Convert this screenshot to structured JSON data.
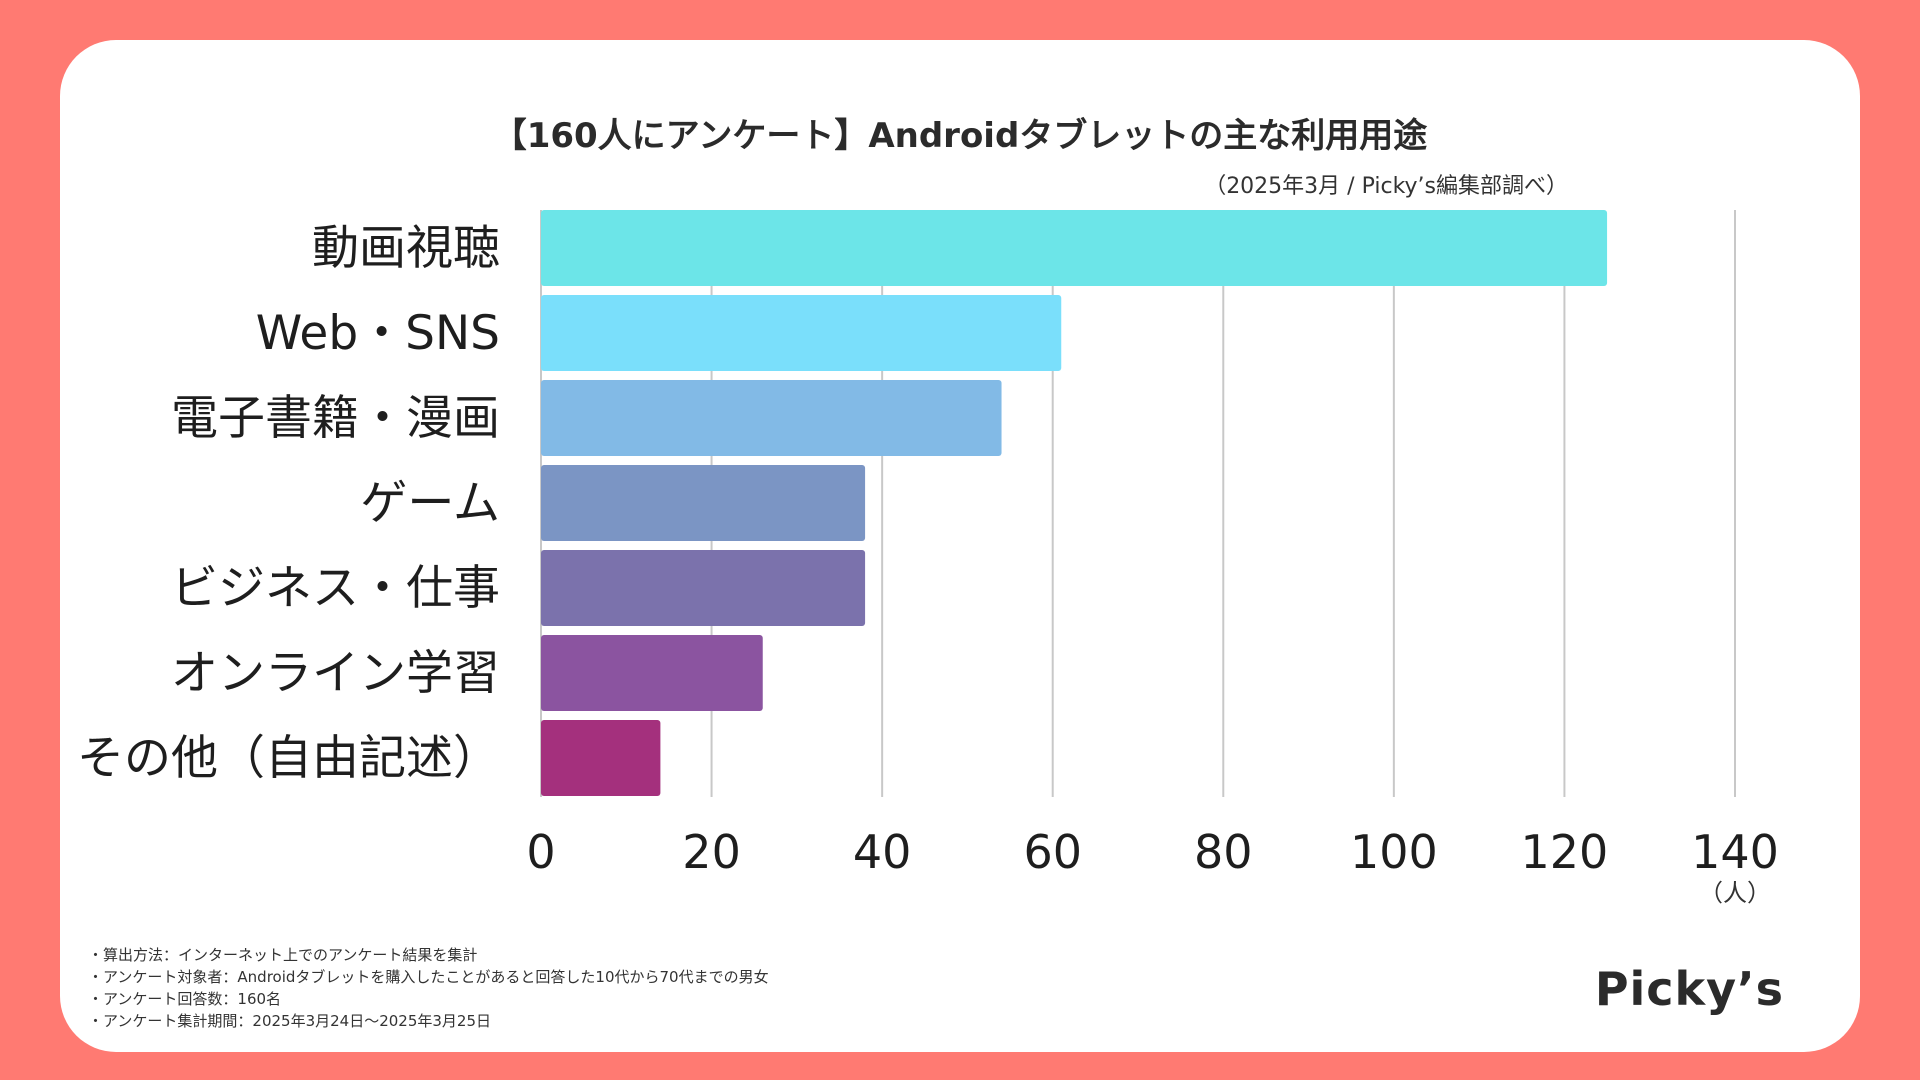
{
  "chart_data": {
    "type": "bar",
    "orientation": "horizontal",
    "title": "【160人にアンケート】Androidタブレットの主な利用用途",
    "subtitle": "（2025年3月 / Picky’s編集部調べ）",
    "categories": [
      "動画視聴",
      "Web・SNS",
      "電子書籍・漫画",
      "ゲーム",
      "ビジネス・仕事",
      "オンライン学習",
      "その他（自由記述）"
    ],
    "values": [
      125,
      61,
      54,
      38,
      38,
      26,
      14
    ],
    "colors": [
      "#6CE5E8",
      "#7ADFFB",
      "#82BAE6",
      "#7B95C4",
      "#7B72AC",
      "#8B54A0",
      "#A4307D"
    ],
    "xlim": [
      0,
      140
    ],
    "xticks": [
      0,
      20,
      40,
      60,
      80,
      100,
      120,
      140
    ],
    "xunit": "（人）",
    "grid": true
  },
  "notes": [
    "・算出方法：インターネット上でのアンケート結果を集計",
    "・アンケート対象者：Androidタブレットを購入したことがあると回答した10代から70代までの男女",
    "・アンケート回答数：160名",
    "・アンケート集計期間：2025年3月24日〜2025年3月25日"
  ],
  "logo": "Picky’s"
}
